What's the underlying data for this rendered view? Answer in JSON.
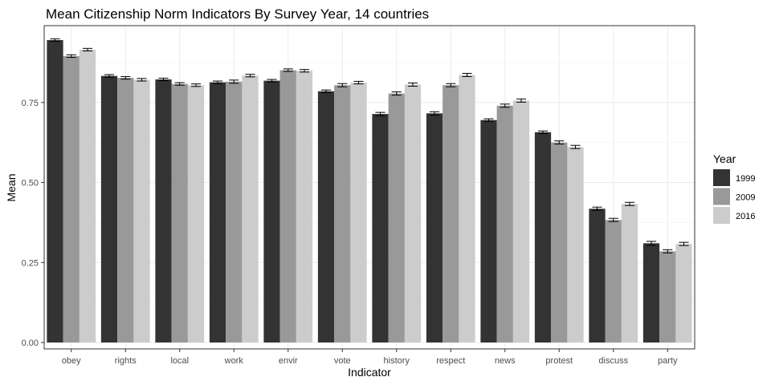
{
  "chart_data": {
    "type": "bar",
    "title": "Mean Citizenship Norm Indicators By Survey Year, 14 countries",
    "xlabel": "Indicator",
    "ylabel": "Mean",
    "categories": [
      "obey",
      "rights",
      "local",
      "work",
      "envir",
      "vote",
      "history",
      "respect",
      "news",
      "protest",
      "discuss",
      "party"
    ],
    "ylim": [
      -0.02,
      0.99
    ],
    "yticks": [
      0,
      0.25,
      0.5,
      0.75
    ],
    "ytick_labels": [
      "0.00",
      "0.25",
      "0.50",
      "0.75"
    ],
    "grid": true,
    "error_bars": true,
    "legend": {
      "title": "Year",
      "position": "right"
    },
    "series": [
      {
        "name": "1999",
        "color": "#333333",
        "values": [
          0.945,
          0.833,
          0.822,
          0.813,
          0.818,
          0.785,
          0.714,
          0.716,
          0.695,
          0.657,
          0.418,
          0.31
        ],
        "errors": [
          0.004,
          0.004,
          0.004,
          0.004,
          0.004,
          0.004,
          0.005,
          0.005,
          0.004,
          0.004,
          0.005,
          0.006
        ]
      },
      {
        "name": "2009",
        "color": "#999999",
        "values": [
          0.895,
          0.827,
          0.808,
          0.815,
          0.851,
          0.804,
          0.778,
          0.804,
          0.74,
          0.625,
          0.383,
          0.285
        ],
        "errors": [
          0.004,
          0.004,
          0.004,
          0.005,
          0.004,
          0.005,
          0.005,
          0.005,
          0.005,
          0.005,
          0.005,
          0.005
        ]
      },
      {
        "name": "2016",
        "color": "#cccccc",
        "values": [
          0.915,
          0.821,
          0.804,
          0.834,
          0.849,
          0.812,
          0.806,
          0.836,
          0.756,
          0.611,
          0.433,
          0.308
        ],
        "errors": [
          0.004,
          0.004,
          0.004,
          0.004,
          0.004,
          0.004,
          0.005,
          0.005,
          0.005,
          0.005,
          0.005,
          0.005
        ]
      }
    ]
  }
}
